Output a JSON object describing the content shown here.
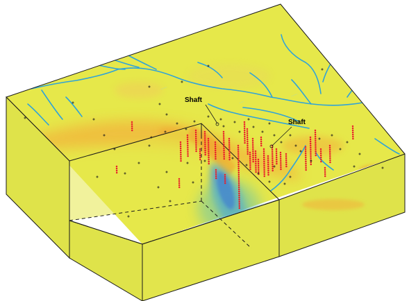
{
  "figure": {
    "callouts": [
      {
        "label": "Shaft"
      },
      {
        "label": "Shaft"
      }
    ]
  },
  "colors": {
    "background_field": "#e6e84a",
    "positive_anomaly": "#f2b23a",
    "negative_anomaly": "#4f9ed9",
    "rivers": "#2fa3d8",
    "drillhole_trace": "#e8202a",
    "collar_marker": "#1a1a1a",
    "frame": "#1a1a1a"
  },
  "icons": {
    "collar": "plus-marker",
    "drillhole": "red-dot-trace"
  }
}
